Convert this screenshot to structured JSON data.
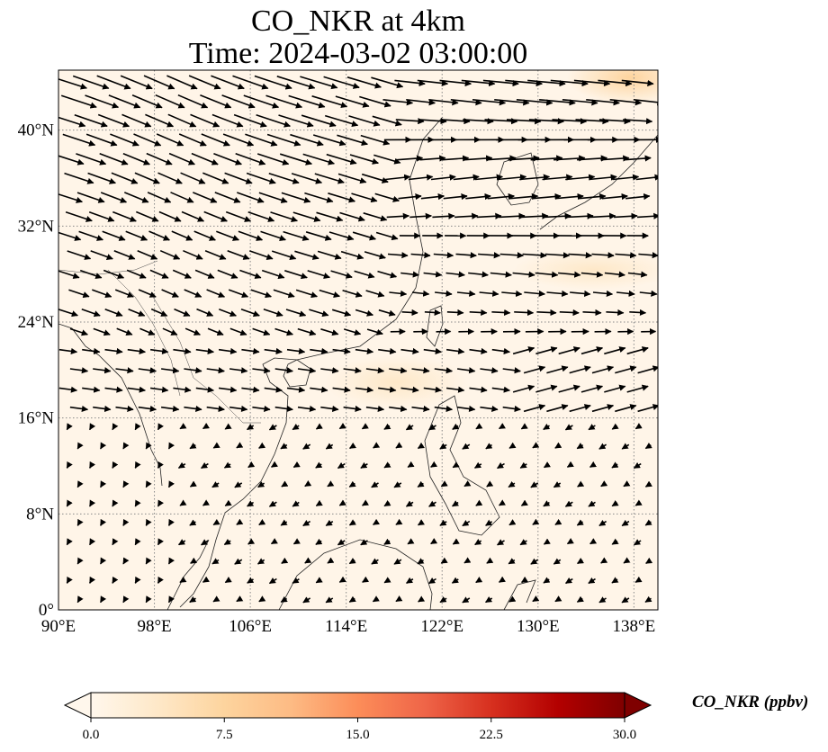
{
  "title": {
    "line1": "CO_NKR at 4km",
    "line2": "Time: 2024-03-02 03:00:00"
  },
  "map": {
    "extent": {
      "lon": [
        90,
        140
      ],
      "lat": [
        0,
        45
      ]
    },
    "lat_ticks": [
      {
        "value": 0,
        "label": "0°"
      },
      {
        "value": 8,
        "label": "8°N"
      },
      {
        "value": 16,
        "label": "16°N"
      },
      {
        "value": 24,
        "label": "24°N"
      },
      {
        "value": 32,
        "label": "32°N"
      },
      {
        "value": 40,
        "label": "40°N"
      }
    ],
    "lon_ticks": [
      {
        "value": 90,
        "label": "90°E"
      },
      {
        "value": 98,
        "label": "98°E"
      },
      {
        "value": 106,
        "label": "106°E"
      },
      {
        "value": 114,
        "label": "114°E"
      },
      {
        "value": 122,
        "label": "122°E"
      },
      {
        "value": 130,
        "label": "130°E"
      },
      {
        "value": 138,
        "label": "138°E"
      }
    ],
    "gridlines": true
  },
  "colorbar": {
    "label": "CO_NKR (ppbv)",
    "cmap": "OrRd",
    "range": [
      0,
      30
    ],
    "ticks": [
      {
        "value": 0,
        "label": "0.0"
      },
      {
        "value": 7.5,
        "label": "7.5"
      },
      {
        "value": 15,
        "label": "15.0"
      },
      {
        "value": 22.5,
        "label": "22.5"
      },
      {
        "value": 30,
        "label": "30.0"
      }
    ],
    "extend": "both",
    "colors": [
      "#fff7ec",
      "#fee8c8",
      "#fdd49e",
      "#fdbb84",
      "#fc8d59",
      "#ef6548",
      "#d7301f",
      "#b30000",
      "#7f0000"
    ]
  },
  "chart_data": {
    "type": "heatmap",
    "variable": "CO_NKR",
    "units": "ppbv",
    "level": "4km",
    "time": "2024-03-02 03:00:00",
    "background_value_range": [
      0,
      3
    ],
    "local_max_regions": [
      {
        "name": "northeast corner (Japan/Sea of Japan)",
        "lon": [
          133,
          140
        ],
        "lat": [
          42,
          45
        ],
        "approx_value": 5
      },
      {
        "name": "East China Sea / Ryukyu band",
        "lon": [
          124,
          140
        ],
        "lat": [
          26,
          30
        ],
        "approx_value": 4
      },
      {
        "name": "South China Sea plume",
        "lon": [
          116,
          122
        ],
        "lat": [
          16,
          21
        ],
        "approx_value": 3
      }
    ],
    "wind_vectors": "dense field of black arrows: strong west-northwest to east-southeast flow north of 22°N, weak variable northeasterly flow over the Indochina peninsula and South China Sea south of 16°N"
  }
}
